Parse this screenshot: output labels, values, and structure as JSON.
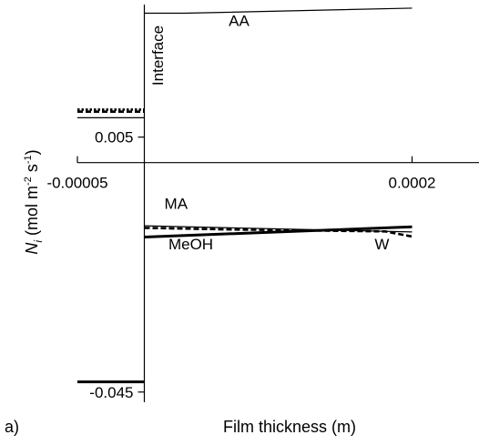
{
  "panel_label": "a)",
  "chart_data": {
    "type": "line",
    "title": "",
    "xlabel": "Film thickness (m)",
    "ylabel_main": "N",
    "ylabel_sub": "i",
    "ylabel_unit_open": " (mol m",
    "ylabel_exp1": "-2",
    "ylabel_mid": " s",
    "ylabel_exp2": "-1",
    "ylabel_unit_close": ")",
    "xlim": [
      -5e-05,
      0.00025
    ],
    "ylim": [
      -0.047,
      0.031
    ],
    "x_ticks": [
      -5e-05,
      0.0002
    ],
    "x_tick_labels": [
      "-0.00005",
      "0.0002"
    ],
    "y_ticks": [
      0.005,
      -0.045
    ],
    "y_tick_labels": [
      "0.005",
      "-0.045"
    ],
    "grid": false,
    "legend": "none",
    "interface_x": 0,
    "series": [
      {
        "label": "AA",
        "style": "thin-solid",
        "x": [
          0,
          3e-05,
          0.0002
        ],
        "y": [
          0.0293,
          0.0293,
          0.0303
        ]
      },
      {
        "label": "MA",
        "style": "thin-solid",
        "x": [
          0,
          0.0002
        ],
        "y": [
          -0.0124,
          -0.0136
        ]
      },
      {
        "label": "W",
        "style": "dashed",
        "x": [
          0,
          6e-05,
          0.00012,
          0.00018,
          0.0002
        ],
        "y": [
          -0.0128,
          -0.0131,
          -0.0133,
          -0.0135,
          -0.0145
        ]
      },
      {
        "label": "MeOH",
        "style": "thick-solid",
        "x": [
          0,
          0.0002
        ],
        "y": [
          -0.0146,
          -0.0126
        ]
      }
    ],
    "left_bulk_lines": [
      {
        "style": "dotted",
        "y": 0.0104
      },
      {
        "style": "dashed",
        "y": 0.01
      },
      {
        "style": "thin-solid",
        "y": 0.0088
      },
      {
        "style": "thick-solid",
        "y": -0.043
      }
    ],
    "annotations": [
      {
        "text": "Interface",
        "anchor_x": 1.38e-05,
        "anchor_y": 0.021,
        "rotate": -90
      },
      {
        "text": "AA",
        "anchor_x": 6.3e-05,
        "anchor_y": 0.0268
      },
      {
        "text": "MA",
        "anchor_x": 1.5e-05,
        "anchor_y": -0.0091
      },
      {
        "text": "MeOH",
        "anchor_x": 1.8e-05,
        "anchor_y": -0.017
      },
      {
        "text": "W",
        "anchor_x": 0.000172,
        "anchor_y": -0.017
      }
    ],
    "colors": {
      "line": "#000000",
      "background": "#ffffff"
    }
  }
}
